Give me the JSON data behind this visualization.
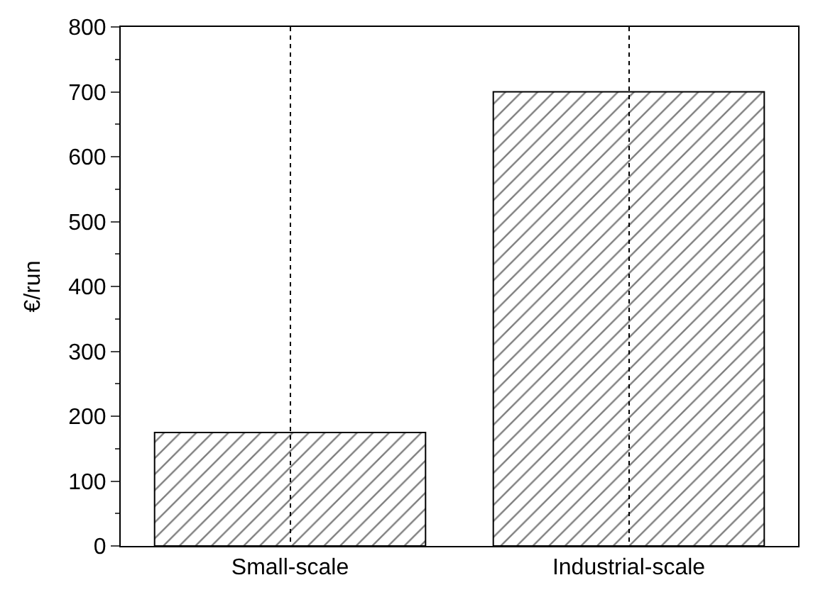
{
  "chart_data": {
    "type": "bar",
    "ylabel": "€/run",
    "categories": [
      "Small-scale",
      "Industrial-scale"
    ],
    "values": [
      175,
      700
    ],
    "color": "#000000",
    "ylim": [
      0,
      800
    ],
    "yticks": [
      0,
      100,
      200,
      300,
      400,
      500,
      600,
      700,
      800
    ],
    "grid": "x"
  }
}
